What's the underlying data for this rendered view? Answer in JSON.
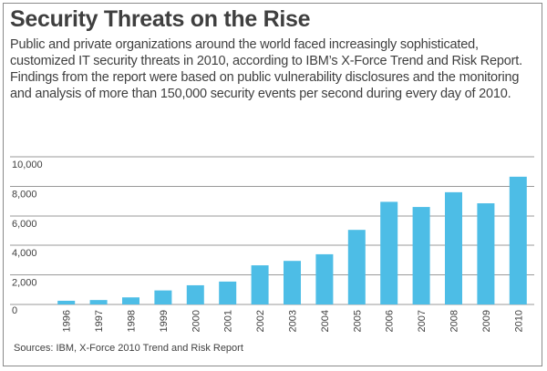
{
  "header": {
    "title": "Security Threats on the Rise",
    "subtitle": "Public and private organizations around the world faced increasingly sophisticated, customized IT security threats in 2010, according to IBM’s X-Force Trend and Risk Report. Findings from the report were based on public vulnerability disclosures and the monitoring and analysis of more than 150,000 security events per second during every day of 2010."
  },
  "footer": {
    "source": "Sources: IBM, X-Force 2010 Trend and Risk Report"
  },
  "colors": {
    "bar": "#4dbde6",
    "grid": "#9a9a9a",
    "text": "#3f3f3f"
  },
  "chart_data": {
    "type": "bar",
    "title": "Security Threats on the Rise",
    "xlabel": "",
    "ylabel": "",
    "categories": [
      "1996",
      "1997",
      "1998",
      "1999",
      "2000",
      "2001",
      "2002",
      "2003",
      "2004",
      "2005",
      "2006",
      "2007",
      "2008",
      "2009",
      "2010"
    ],
    "values": [
      250,
      300,
      480,
      950,
      1300,
      1550,
      2650,
      2950,
      3400,
      5050,
      6950,
      6600,
      7600,
      6850,
      8650
    ],
    "ylim": [
      0,
      10000
    ],
    "yticks": [
      0,
      2000,
      4000,
      6000,
      8000,
      10000
    ],
    "ytick_labels": [
      "0",
      "2,000",
      "4,000",
      "6,000",
      "8,000",
      "10,000"
    ],
    "grid": true,
    "legend": "none"
  }
}
